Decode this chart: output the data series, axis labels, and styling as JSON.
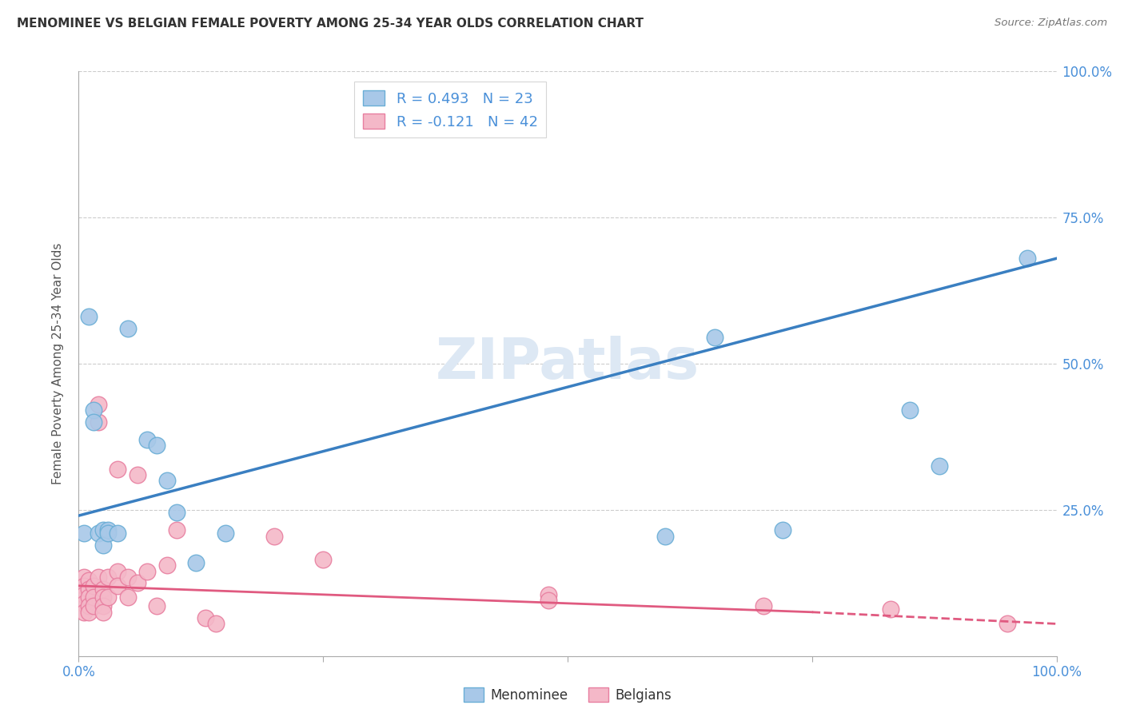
{
  "title": "MENOMINEE VS BELGIAN FEMALE POVERTY AMONG 25-34 YEAR OLDS CORRELATION CHART",
  "source": "Source: ZipAtlas.com",
  "ylabel": "Female Poverty Among 25-34 Year Olds",
  "xlim": [
    0,
    1
  ],
  "ylim": [
    0,
    1
  ],
  "menominee_color": "#a8c8e8",
  "menominee_edge": "#6aaed6",
  "belgians_color": "#f4b8c8",
  "belgians_edge": "#e87fa0",
  "trend_menominee_color": "#3a7fc1",
  "trend_belgians_color": "#e05a80",
  "watermark_color": "#dde8f4",
  "menominee_x": [
    0.005,
    0.01,
    0.015,
    0.015,
    0.02,
    0.025,
    0.025,
    0.03,
    0.03,
    0.04,
    0.05,
    0.07,
    0.08,
    0.09,
    0.1,
    0.12,
    0.15,
    0.6,
    0.65,
    0.72,
    0.85,
    0.88,
    0.97
  ],
  "menominee_y": [
    0.21,
    0.58,
    0.42,
    0.4,
    0.21,
    0.215,
    0.19,
    0.215,
    0.21,
    0.21,
    0.56,
    0.37,
    0.36,
    0.3,
    0.245,
    0.16,
    0.21,
    0.205,
    0.545,
    0.215,
    0.42,
    0.325,
    0.68
  ],
  "belgians_x": [
    0.005,
    0.005,
    0.005,
    0.005,
    0.005,
    0.01,
    0.01,
    0.01,
    0.01,
    0.01,
    0.015,
    0.015,
    0.015,
    0.02,
    0.02,
    0.02,
    0.025,
    0.025,
    0.025,
    0.025,
    0.03,
    0.03,
    0.04,
    0.04,
    0.04,
    0.05,
    0.05,
    0.06,
    0.06,
    0.07,
    0.08,
    0.09,
    0.1,
    0.13,
    0.14,
    0.2,
    0.25,
    0.48,
    0.48,
    0.7,
    0.83,
    0.95
  ],
  "belgians_y": [
    0.135,
    0.12,
    0.105,
    0.09,
    0.075,
    0.13,
    0.115,
    0.1,
    0.085,
    0.075,
    0.12,
    0.1,
    0.085,
    0.43,
    0.4,
    0.135,
    0.115,
    0.1,
    0.085,
    0.075,
    0.135,
    0.1,
    0.32,
    0.145,
    0.12,
    0.135,
    0.1,
    0.31,
    0.125,
    0.145,
    0.085,
    0.155,
    0.215,
    0.065,
    0.055,
    0.205,
    0.165,
    0.105,
    0.095,
    0.085,
    0.08,
    0.055
  ],
  "trend_men_x0": 0.0,
  "trend_men_y0": 0.24,
  "trend_men_x1": 1.0,
  "trend_men_y1": 0.68,
  "trend_bel_x0": 0.0,
  "trend_bel_y0": 0.12,
  "trend_bel_x1": 0.75,
  "trend_bel_y1": 0.075,
  "trend_bel_dash_x0": 0.75,
  "trend_bel_dash_y0": 0.075,
  "trend_bel_dash_x1": 1.0,
  "trend_bel_dash_y1": 0.055,
  "legend_label1": "R = 0.493   N = 23",
  "legend_label2": "R = -0.121   N = 42"
}
